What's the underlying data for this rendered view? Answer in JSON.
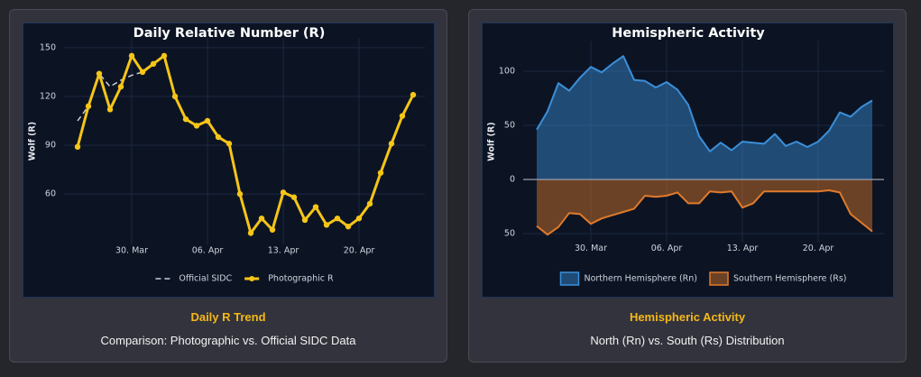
{
  "chart_data": [
    {
      "type": "line",
      "title": "Daily Relative Number (R)",
      "ylabel": "Wolf (R)",
      "categories": [
        null,
        null,
        null,
        null,
        null,
        "30. Mar",
        null,
        null,
        null,
        null,
        null,
        null,
        "06. Apr",
        null,
        null,
        null,
        null,
        null,
        null,
        "13. Apr",
        null,
        null,
        null,
        null,
        null,
        null,
        "20. Apr",
        null,
        null,
        null,
        null,
        null
      ],
      "series": [
        {
          "name": "Official SIDC",
          "color": "#c8ccd6",
          "linestyle": "dashed",
          "markers": false,
          "values": [
            105,
            114,
            134,
            126,
            130,
            133,
            135,
            140,
            145,
            120,
            106,
            102,
            105,
            95,
            91,
            60,
            36,
            45,
            38,
            61,
            58,
            44,
            52,
            41,
            45,
            40,
            45,
            54,
            73,
            91,
            108,
            121
          ]
        },
        {
          "name": "Photographic R",
          "color": "#f5c518",
          "linestyle": "solid",
          "markers": true,
          "values": [
            89,
            114,
            134,
            112,
            126,
            145,
            135,
            140,
            145,
            120,
            106,
            102,
            105,
            95,
            91,
            60,
            36,
            45,
            38,
            61,
            58,
            44,
            52,
            41,
            45,
            40,
            45,
            54,
            73,
            91,
            108,
            121
          ]
        }
      ],
      "ylim": [
        29,
        156
      ],
      "yticks": [
        60,
        90,
        120,
        150
      ],
      "grid": true
    },
    {
      "type": "area",
      "title": "Hemispheric Activity",
      "ylabel": "Wolf (R)",
      "categories": [
        null,
        null,
        null,
        null,
        null,
        "30. Mar",
        null,
        null,
        null,
        null,
        null,
        null,
        "06. Apr",
        null,
        null,
        null,
        null,
        null,
        null,
        "13. Apr",
        null,
        null,
        null,
        null,
        null,
        null,
        "20. Apr",
        null,
        null,
        null,
        null,
        null
      ],
      "series": [
        {
          "name": "Northern Hemisphere (Rn)",
          "color": "#3a8fd9",
          "values": [
            46,
            63,
            89,
            82,
            94,
            104,
            99,
            107,
            114,
            92,
            91,
            85,
            90,
            83,
            69,
            40,
            26,
            34,
            27,
            35,
            34,
            33,
            42,
            31,
            35,
            30,
            35,
            45,
            62,
            58,
            67,
            73
          ]
        },
        {
          "name": "Southern Hemisphere (Rs)",
          "color": "#e07a2a",
          "values": [
            -43,
            -51,
            -44,
            -31,
            -32,
            -41,
            -36,
            -33,
            -30,
            -27,
            -15,
            -16,
            -15,
            -12,
            -22,
            -22,
            -11,
            -12,
            -11,
            -26,
            -22,
            -11,
            -11,
            -11,
            -11,
            -11,
            -11,
            -10,
            -12,
            -32,
            -40,
            -48
          ]
        }
      ],
      "ylim": [
        -58,
        128
      ],
      "yticks": [
        {
          "value": -50,
          "label": "50"
        },
        0,
        50,
        100
      ],
      "grid": true
    }
  ],
  "cards": [
    {
      "title": "Daily R Trend",
      "subtitle": "Comparison: Photographic vs. Official SIDC Data"
    },
    {
      "title": "Hemispheric Activity",
      "subtitle": "North (Rn) vs. South (Rs) Distribution"
    }
  ]
}
